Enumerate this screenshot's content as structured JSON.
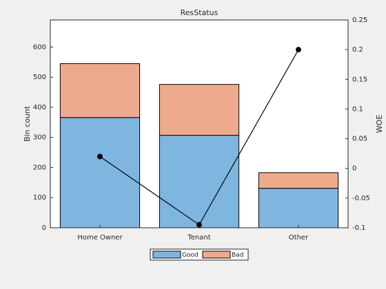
{
  "chart_data": {
    "type": "bar",
    "stacked": true,
    "title": "ResStatus",
    "ylabel": "Bin count",
    "y2label": "WOE",
    "categories": [
      "Home Owner",
      "Tenant",
      "Other"
    ],
    "series": [
      {
        "name": "Good",
        "color": "#7fb6df",
        "values": [
          366,
          307,
          131
        ]
      },
      {
        "name": "Bad",
        "color": "#eeaa8c",
        "values": [
          179,
          169,
          52
        ]
      },
      {
        "type": "line",
        "axis": "y2",
        "color": "#000000",
        "values": [
          0.02,
          -0.095,
          0.2
        ]
      }
    ],
    "ylim": [
      0,
      690
    ],
    "yticks": [
      0,
      100,
      200,
      300,
      400,
      500,
      600
    ],
    "y2lim": [
      -0.1,
      0.25
    ],
    "y2ticks": [
      -0.1,
      -0.05,
      0,
      0.05,
      0.1,
      0.15,
      0.2,
      0.25
    ],
    "legend": "bottom"
  }
}
